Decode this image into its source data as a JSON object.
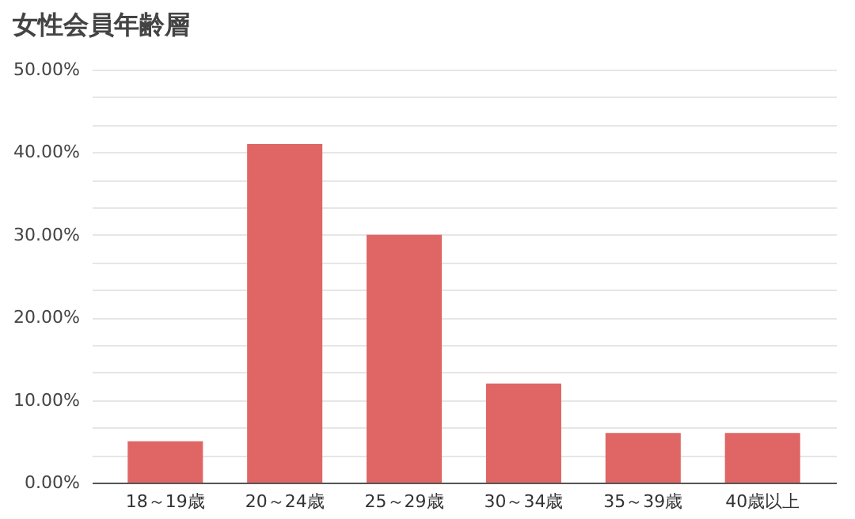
{
  "chart_data": {
    "type": "bar",
    "title": "女性会員年齢層",
    "categories": [
      "18～19歳",
      "20～24歳",
      "25～29歳",
      "30～34歳",
      "35～39歳",
      "40歳以上"
    ],
    "values": [
      5,
      41,
      30,
      12,
      6,
      6
    ],
    "color": "#e06666",
    "ylim": [
      0,
      50
    ],
    "yticks": [
      {
        "value": 0,
        "label": "0.00%"
      },
      {
        "value": 3.33,
        "label": null
      },
      {
        "value": 6.67,
        "label": null
      },
      {
        "value": 10,
        "label": "10.00%"
      },
      {
        "value": 13.33,
        "label": null
      },
      {
        "value": 16.67,
        "label": null
      },
      {
        "value": 20,
        "label": "20.00%"
      },
      {
        "value": 23.33,
        "label": null
      },
      {
        "value": 26.67,
        "label": null
      },
      {
        "value": 30,
        "label": "30.00%"
      },
      {
        "value": 33.33,
        "label": null
      },
      {
        "value": 36.67,
        "label": null
      },
      {
        "value": 40,
        "label": "40.00%"
      },
      {
        "value": 43.33,
        "label": null
      },
      {
        "value": 46.67,
        "label": null
      },
      {
        "value": 50,
        "label": "50.00%"
      }
    ],
    "grid": "y"
  }
}
